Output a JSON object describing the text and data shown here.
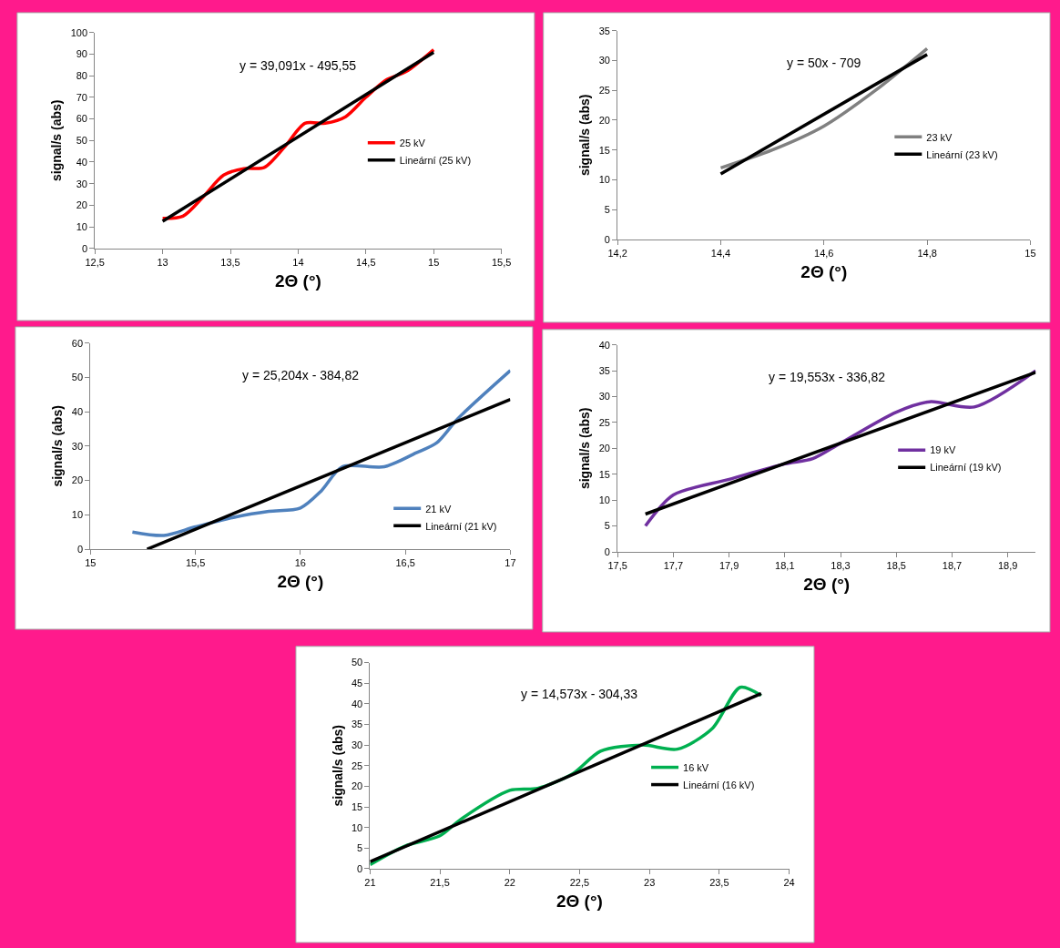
{
  "chart_data": [
    {
      "type": "line",
      "xlabel": "2Θ (°)",
      "ylabel": "signal/s (abs)",
      "annotations": [
        "y = 39,091x - 495,55"
      ],
      "legend": "right",
      "xlim": [
        12.5,
        15.5
      ],
      "xticks": [
        {
          "value": 12.5,
          "label": "12,5"
        },
        13,
        {
          "value": 13.5,
          "label": "13,5"
        },
        14,
        {
          "value": 14.5,
          "label": "14,5"
        },
        15,
        {
          "value": 15.5,
          "label": "15,5"
        }
      ],
      "ylim": [
        0,
        100
      ],
      "yticks": [
        0,
        10,
        20,
        30,
        40,
        50,
        60,
        70,
        80,
        90,
        100
      ],
      "series": [
        {
          "name": "25 kV",
          "color": "#ff0000",
          "x": [
            13,
            13.15,
            13.3,
            13.45,
            13.6,
            13.75,
            13.9,
            14.05,
            14.2,
            14.35,
            14.5,
            14.65,
            14.8,
            15
          ],
          "values": [
            14,
            15,
            24,
            34,
            37,
            37.5,
            47,
            58,
            58,
            61,
            70,
            78,
            82,
            92
          ]
        },
        {
          "name": "Lineární (25 kV)",
          "color": "#000000",
          "x": [
            13,
            15
          ],
          "values": [
            12.6,
            90.8
          ]
        }
      ]
    },
    {
      "type": "line",
      "xlabel": "2Θ (°)",
      "ylabel": "signal/s (abs)",
      "annotations": [
        "y = 50x - 709"
      ],
      "legend": "right",
      "xlim": [
        14.2,
        15
      ],
      "xticks": [
        {
          "value": 14.2,
          "label": "14,2"
        },
        {
          "value": 14.4,
          "label": "14,4"
        },
        {
          "value": 14.6,
          "label": "14,6"
        },
        {
          "value": 14.8,
          "label": "14,8"
        },
        15
      ],
      "ylim": [
        0,
        35
      ],
      "yticks": [
        0,
        5,
        10,
        15,
        20,
        25,
        30,
        35
      ],
      "series": [
        {
          "name": "23 kV",
          "color": "#808080",
          "x": [
            14.4,
            14.5,
            14.6,
            14.7,
            14.8
          ],
          "values": [
            12,
            15,
            19,
            25,
            32
          ]
        },
        {
          "name": "Lineární (23 kV)",
          "color": "#000000",
          "x": [
            14.4,
            14.8
          ],
          "values": [
            11,
            31
          ]
        }
      ]
    },
    {
      "type": "line",
      "xlabel": "2Θ (°)",
      "ylabel": "signal/s (abs)",
      "annotations": [
        "y = 25,204x - 384,82"
      ],
      "legend": "bottom right",
      "xlim": [
        15,
        17
      ],
      "xticks": [
        15,
        {
          "value": 15.5,
          "label": "15,5"
        },
        16,
        {
          "value": 16.5,
          "label": "16,5"
        },
        17
      ],
      "ylim": [
        0,
        60
      ],
      "yticks": [
        0,
        10,
        20,
        30,
        40,
        50,
        60
      ],
      "series": [
        {
          "name": "21 kV",
          "color": "#4f81bd",
          "x": [
            15.2,
            15.35,
            15.5,
            15.7,
            15.85,
            16,
            16.1,
            16.2,
            16.4,
            16.55,
            16.65,
            16.75,
            17
          ],
          "values": [
            5,
            4,
            6.5,
            9.5,
            11,
            12,
            17,
            24,
            24,
            28,
            31,
            38,
            52
          ]
        },
        {
          "name": "Lineární (21 kV)",
          "color": "#000000",
          "x": [
            15.27,
            17
          ],
          "values": [
            0.0,
            43.6
          ]
        }
      ]
    },
    {
      "type": "line",
      "xlabel": "2Θ (°)",
      "ylabel": "signal/s (abs)",
      "annotations": [
        "y = 19,553x - 336,82"
      ],
      "legend": "right",
      "xlim": [
        17.5,
        19
      ],
      "xticks": [
        {
          "value": 17.5,
          "label": "17,5"
        },
        {
          "value": 17.7,
          "label": "17,7"
        },
        {
          "value": 17.9,
          "label": "17,9"
        },
        {
          "value": 18.1,
          "label": "18,1"
        },
        {
          "value": 18.3,
          "label": "18,3"
        },
        {
          "value": 18.5,
          "label": "18,5"
        },
        {
          "value": 18.7,
          "label": "18,7"
        },
        {
          "value": 18.9,
          "label": "18,9"
        }
      ],
      "ylim": [
        0,
        40
      ],
      "yticks": [
        0,
        5,
        10,
        15,
        20,
        25,
        30,
        35,
        40
      ],
      "series": [
        {
          "name": "19 kV",
          "color": "#7030a0",
          "x": [
            17.6,
            17.7,
            17.9,
            18.1,
            18.2,
            18.3,
            18.5,
            18.62,
            18.78,
            19
          ],
          "values": [
            5,
            11,
            14,
            17,
            18,
            21,
            27,
            29,
            28,
            35
          ]
        },
        {
          "name": "Lineární (19 kV)",
          "color": "#000000",
          "x": [
            17.6,
            19
          ],
          "values": [
            7.3,
            34.7
          ]
        }
      ]
    },
    {
      "type": "line",
      "xlabel": "2Θ (°)",
      "ylabel": "signal/s (abs)",
      "annotations": [
        "y = 14,573x - 304,33"
      ],
      "legend": "right",
      "xlim": [
        21,
        24
      ],
      "xticks": [
        21,
        {
          "value": 21.5,
          "label": "21,5"
        },
        22,
        {
          "value": 22.5,
          "label": "22,5"
        },
        23,
        {
          "value": 23.5,
          "label": "23,5"
        },
        24
      ],
      "ylim": [
        0,
        50
      ],
      "yticks": [
        0,
        5,
        10,
        15,
        20,
        25,
        30,
        35,
        40,
        45,
        50
      ],
      "series": [
        {
          "name": "16 kV",
          "color": "#00b050",
          "x": [
            21,
            21.25,
            21.5,
            21.65,
            22,
            22.2,
            22.45,
            22.65,
            22.95,
            23.2,
            23.45,
            23.65,
            23.8
          ],
          "values": [
            1,
            5.5,
            8,
            12,
            19,
            19.5,
            23,
            28.5,
            30,
            29,
            34,
            44,
            42
          ]
        },
        {
          "name": "Lineární (16 kV)",
          "color": "#000000",
          "x": [
            21,
            23.8
          ],
          "values": [
            1.7,
            42.5
          ]
        }
      ]
    }
  ]
}
